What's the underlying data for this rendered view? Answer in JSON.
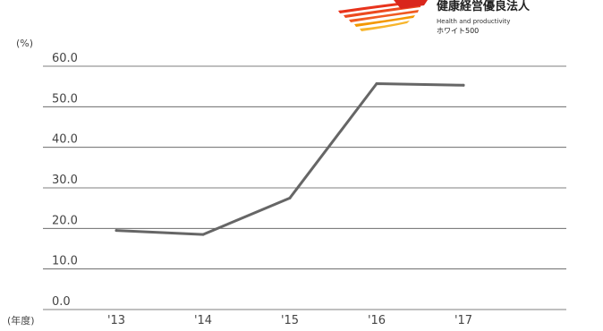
{
  "chart_data": {
    "type": "line",
    "categories": [
      "'13",
      "'14",
      "'15",
      "'16",
      "'17"
    ],
    "series": [
      {
        "values": [
          19.5,
          18.5,
          27.5,
          55.7,
          55.3
        ]
      }
    ],
    "ylim": [
      0,
      60
    ],
    "y_ticks": [
      "0.0",
      "10.0",
      "20.0",
      "30.0",
      "40.0",
      "50.0",
      "60.0"
    ],
    "y_unit_label": "(%)",
    "x_unit_label": "(年度)",
    "grid": true,
    "line_color": "#666666"
  },
  "logo": {
    "title": "健康経営優良法人",
    "subtitle": "Health and productivity",
    "subtitle2": "ホワイト500",
    "colors": [
      "#e8331c",
      "#f05a22",
      "#f39800",
      "#f7b52c"
    ]
  }
}
